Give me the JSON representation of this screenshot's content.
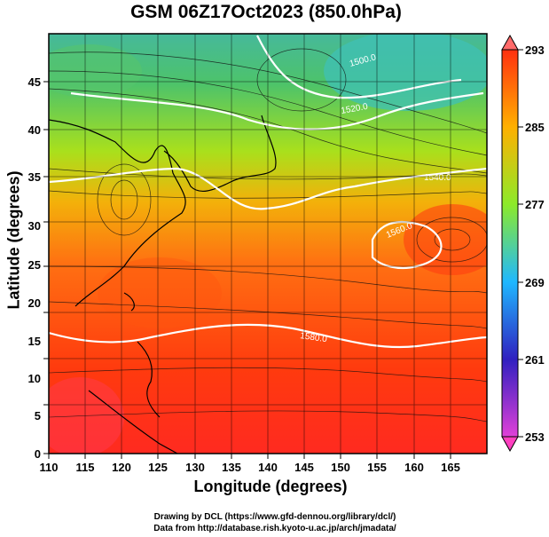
{
  "map": {
    "title": "GSM 06Z17Oct2023 (850.0hPa)",
    "xlabel": "Longitude (degrees)",
    "ylabel": "Latitude  (degrees)",
    "x_ticks": [
      "110",
      "115",
      "120",
      "125",
      "130",
      "135",
      "140",
      "145",
      "150",
      "155",
      "160",
      "165"
    ],
    "y_ticks": [
      "0",
      "5",
      "10",
      "15",
      "20",
      "25",
      "30",
      "35",
      "40",
      "45"
    ],
    "lon_range": [
      110,
      170
    ],
    "lat_range": [
      0,
      50
    ],
    "colorbar_labels": [
      "293",
      "285",
      "277",
      "269",
      "261",
      "253"
    ],
    "colorbar_range": [
      253,
      293
    ],
    "colorbar_colors": [
      "#e040d8",
      "#3020c0",
      "#1fb8ff",
      "#8cea2a",
      "#ffb000",
      "#ff3010"
    ],
    "contour_labels": [
      "1560.0",
      "1520.0",
      "1500.0",
      "1580.0",
      "1540.0"
    ],
    "contour_values": [
      1500,
      1520,
      1540,
      1560,
      1580
    ],
    "variables": [
      "temperature (K)",
      "geopotential height (m)",
      "wind streamlines"
    ]
  },
  "credit": {
    "line1": "Drawing by DCL (https://www.gfd-dennou.org/library/dcl/)",
    "line2": "Data from http://database.rish.kyoto-u.ac.jp/arch/jmadata/"
  }
}
